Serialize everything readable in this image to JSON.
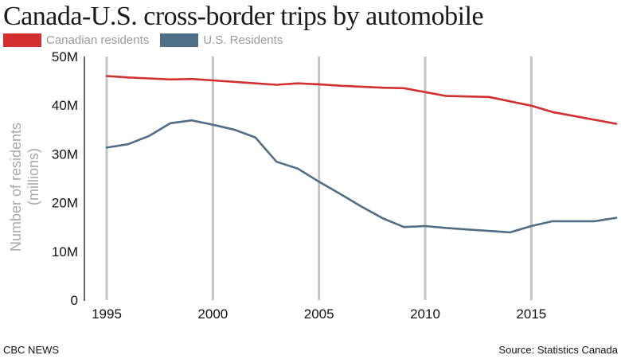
{
  "chart_data": {
    "type": "line",
    "title": "Canada-U.S. cross-border trips by automobile",
    "ylabel_line1": "Number of residents",
    "ylabel_line2": "(millions)",
    "xlabel": "",
    "x": [
      1995,
      1996,
      1997,
      1998,
      1999,
      2000,
      2001,
      2002,
      2003,
      2004,
      2005,
      2006,
      2007,
      2008,
      2009,
      2010,
      2011,
      2012,
      2013,
      2014,
      2015,
      2016,
      2017,
      2018,
      2019
    ],
    "xticks": [
      1995,
      2000,
      2005,
      2010,
      2015
    ],
    "xticks_labels": [
      "1995",
      "2000",
      "2005",
      "2010",
      "2015"
    ],
    "xlim": [
      1995,
      2019
    ],
    "ylim": [
      0,
      50
    ],
    "yticks": [
      0,
      10,
      20,
      30,
      40,
      50
    ],
    "yticks_labels": [
      "0",
      "10M",
      "20M",
      "30M",
      "40M",
      "50M"
    ],
    "grid": "vertical lines at x ticks",
    "legend_position": "top-left",
    "series": [
      {
        "name": "Canadian residents",
        "color": "#d32f2f",
        "values": [
          46.0,
          45.7,
          45.5,
          45.3,
          45.4,
          45.1,
          44.8,
          44.5,
          44.2,
          44.5,
          44.3,
          44.0,
          43.8,
          43.6,
          43.5,
          42.7,
          41.9,
          41.8,
          41.7,
          40.8,
          39.9,
          38.6,
          37.8,
          37.0,
          36.2
        ]
      },
      {
        "name": "U.S. Residents",
        "color": "#4e6e87",
        "values": [
          31.3,
          32.0,
          33.7,
          36.3,
          36.9,
          36.0,
          35.0,
          33.4,
          28.4,
          27.0,
          24.3,
          21.8,
          19.2,
          16.8,
          15.0,
          15.2,
          14.8,
          14.5,
          14.2,
          13.9,
          15.2,
          16.2,
          16.2,
          16.2,
          16.9
        ]
      }
    ]
  },
  "footer": {
    "left": "CBC NEWS",
    "right": "Source: Statistics Canada"
  }
}
